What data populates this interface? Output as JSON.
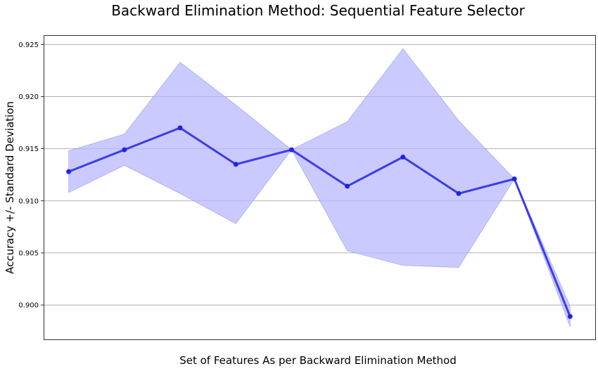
{
  "chart_data": {
    "type": "line",
    "title": "Backward Elimination Method: Sequential Feature Selector",
    "xlabel": "Set of Features As per Backward Elimination Method",
    "ylabel": "Accuracy +/- Standard Deviation",
    "x": [
      1,
      2,
      3,
      4,
      5,
      6,
      7,
      8,
      9,
      10
    ],
    "series": [
      {
        "values": [
          0.9128,
          0.9149,
          0.917,
          0.9135,
          0.9149,
          0.9114,
          0.9142,
          0.9107,
          0.9121,
          0.8989
        ],
        "upper": [
          0.9148,
          0.9164,
          0.9233,
          0.9192,
          0.9149,
          0.9176,
          0.9246,
          0.9177,
          0.9121,
          0.8999
        ],
        "lower": [
          0.9108,
          0.9134,
          0.9107,
          0.9078,
          0.9149,
          0.9052,
          0.9038,
          0.9036,
          0.9121,
          0.8979
        ]
      }
    ],
    "yticks": [
      "0.900",
      "0.905",
      "0.910",
      "0.915",
      "0.920",
      "0.925"
    ],
    "ylim": [
      0.8967,
      0.9259
    ],
    "xlim": [
      0.55,
      10.45
    ],
    "x_tick_labels": false,
    "grid": "horizontal",
    "colors": {
      "line": "#2323e6",
      "band": "#b8b8ff",
      "grid": "#b0b0b0"
    }
  }
}
